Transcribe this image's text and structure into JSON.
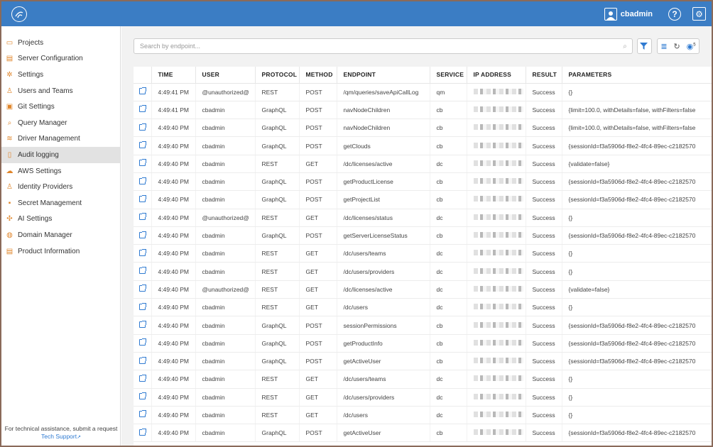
{
  "header": {
    "user_name": "cbadmin",
    "help_label": "?",
    "colors": {
      "bar": "#3b7dc4",
      "accent": "#e0852a",
      "link": "#2e7ad1"
    },
    "icons": [
      "logo-icon",
      "user-icon",
      "help-icon",
      "gear-icon"
    ]
  },
  "sidebar": {
    "items": [
      {
        "label": "Projects",
        "icon": "folder-icon",
        "glyph": "▭"
      },
      {
        "label": "Server Configuration",
        "icon": "server-icon",
        "glyph": "▤"
      },
      {
        "label": "Settings",
        "icon": "gear-icon",
        "glyph": "✲"
      },
      {
        "label": "Users and Teams",
        "icon": "user-icon",
        "glyph": "♙"
      },
      {
        "label": "Git Settings",
        "icon": "git-icon",
        "glyph": "▣"
      },
      {
        "label": "Query Manager",
        "icon": "query-icon",
        "glyph": "⌕"
      },
      {
        "label": "Driver Management",
        "icon": "database-icon",
        "glyph": "≋"
      },
      {
        "label": "Audit logging",
        "icon": "document-icon",
        "glyph": "▯"
      },
      {
        "label": "AWS Settings",
        "icon": "cloud-icon",
        "glyph": "☁"
      },
      {
        "label": "Identity Providers",
        "icon": "id-icon",
        "glyph": "♙"
      },
      {
        "label": "Secret Management",
        "icon": "lock-icon",
        "glyph": "▪"
      },
      {
        "label": "AI Settings",
        "icon": "ai-icon",
        "glyph": "✣"
      },
      {
        "label": "Domain Manager",
        "icon": "globe-icon",
        "glyph": "◍"
      },
      {
        "label": "Product Information",
        "icon": "info-icon",
        "glyph": "▤"
      }
    ],
    "active_index": 7,
    "footer_text": "For technical assistance, submit a request",
    "footer_link": "Tech Support"
  },
  "search": {
    "placeholder": "Search by endpoint...",
    "value": ""
  },
  "toolbar": {
    "filter_icon": "filter-icon",
    "export_icon": "export-icon",
    "refresh_icon": "refresh-icon",
    "autorefresh_icon": "auto-refresh-icon",
    "autorefresh_count": "5"
  },
  "table": {
    "columns": [
      "",
      "TIME",
      "USER",
      "PROTOCOL",
      "METHOD",
      "ENDPOINT",
      "SERVICE",
      "IP ADDRESS",
      "RESULT",
      "PARAMETERS"
    ],
    "rows": [
      [
        "4:49:41 PM",
        "@unauthorized@",
        "REST",
        "POST",
        "/qm/queries/saveApiCallLog",
        "qm",
        "",
        "Success",
        "{}"
      ],
      [
        "4:49:41 PM",
        "cbadmin",
        "GraphQL",
        "POST",
        "navNodeChildren",
        "cb",
        "",
        "Success",
        "{limit=100.0, withDetails=false, withFilters=false"
      ],
      [
        "4:49:40 PM",
        "cbadmin",
        "GraphQL",
        "POST",
        "navNodeChildren",
        "cb",
        "",
        "Success",
        "{limit=100.0, withDetails=false, withFilters=false"
      ],
      [
        "4:49:40 PM",
        "cbadmin",
        "GraphQL",
        "POST",
        "getClouds",
        "cb",
        "",
        "Success",
        "{sessionId=f3a5906d-f8e2-4fc4-89ec-c2182570"
      ],
      [
        "4:49:40 PM",
        "cbadmin",
        "REST",
        "GET",
        "/dc/licenses/active",
        "dc",
        "",
        "Success",
        "{validate=false}"
      ],
      [
        "4:49:40 PM",
        "cbadmin",
        "GraphQL",
        "POST",
        "getProductLicense",
        "cb",
        "",
        "Success",
        "{sessionId=f3a5906d-f8e2-4fc4-89ec-c2182570"
      ],
      [
        "4:49:40 PM",
        "cbadmin",
        "GraphQL",
        "POST",
        "getProjectList",
        "cb",
        "",
        "Success",
        "{sessionId=f3a5906d-f8e2-4fc4-89ec-c2182570"
      ],
      [
        "4:49:40 PM",
        "@unauthorized@",
        "REST",
        "GET",
        "/dc/licenses/status",
        "dc",
        "",
        "Success",
        "{}"
      ],
      [
        "4:49:40 PM",
        "cbadmin",
        "GraphQL",
        "POST",
        "getServerLicenseStatus",
        "cb",
        "",
        "Success",
        "{sessionId=f3a5906d-f8e2-4fc4-89ec-c2182570"
      ],
      [
        "4:49:40 PM",
        "cbadmin",
        "REST",
        "GET",
        "/dc/users/teams",
        "dc",
        "",
        "Success",
        "{}"
      ],
      [
        "4:49:40 PM",
        "cbadmin",
        "REST",
        "GET",
        "/dc/users/providers",
        "dc",
        "",
        "Success",
        "{}"
      ],
      [
        "4:49:40 PM",
        "@unauthorized@",
        "REST",
        "GET",
        "/dc/licenses/active",
        "dc",
        "",
        "Success",
        "{validate=false}"
      ],
      [
        "4:49:40 PM",
        "cbadmin",
        "REST",
        "GET",
        "/dc/users",
        "dc",
        "",
        "Success",
        "{}"
      ],
      [
        "4:49:40 PM",
        "cbadmin",
        "GraphQL",
        "POST",
        "sessionPermissions",
        "cb",
        "",
        "Success",
        "{sessionId=f3a5906d-f8e2-4fc4-89ec-c2182570"
      ],
      [
        "4:49:40 PM",
        "cbadmin",
        "GraphQL",
        "POST",
        "getProductInfo",
        "cb",
        "",
        "Success",
        "{sessionId=f3a5906d-f8e2-4fc4-89ec-c2182570"
      ],
      [
        "4:49:40 PM",
        "cbadmin",
        "GraphQL",
        "POST",
        "getActiveUser",
        "cb",
        "",
        "Success",
        "{sessionId=f3a5906d-f8e2-4fc4-89ec-c2182570"
      ],
      [
        "4:49:40 PM",
        "cbadmin",
        "REST",
        "GET",
        "/dc/users/teams",
        "dc",
        "",
        "Success",
        "{}"
      ],
      [
        "4:49:40 PM",
        "cbadmin",
        "REST",
        "GET",
        "/dc/users/providers",
        "dc",
        "",
        "Success",
        "{}"
      ],
      [
        "4:49:40 PM",
        "cbadmin",
        "REST",
        "GET",
        "/dc/users",
        "dc",
        "",
        "Success",
        "{}"
      ],
      [
        "4:49:40 PM",
        "cbadmin",
        "GraphQL",
        "POST",
        "getActiveUser",
        "cb",
        "",
        "Success",
        "{sessionId=f3a5906d-f8e2-4fc4-89ec-c2182570"
      ]
    ]
  }
}
